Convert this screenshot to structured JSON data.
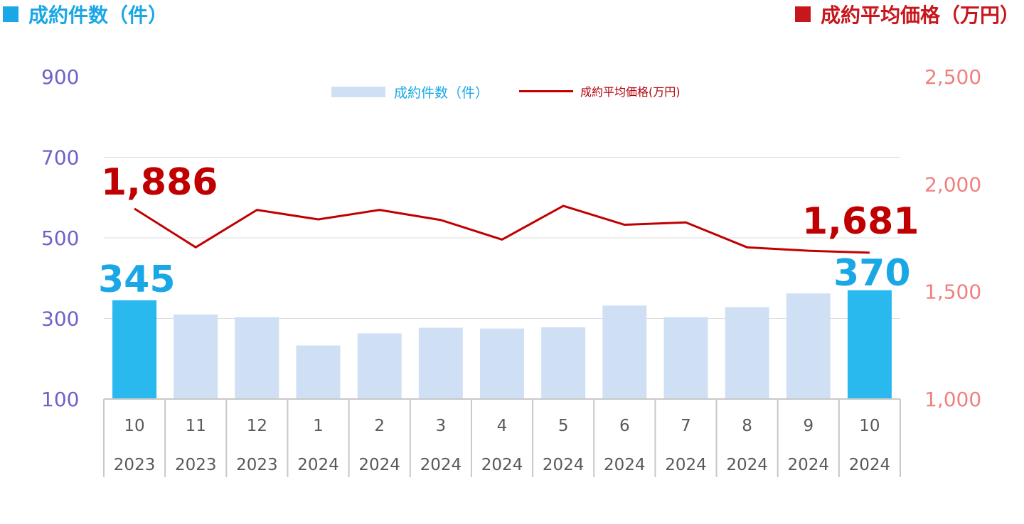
{
  "header": {
    "left_title": "成約件数（件）",
    "right_title": "成約平均価格（万円）"
  },
  "legend": {
    "bar_label": "成約件数（件）",
    "line_label": "成約平均価格(万円)"
  },
  "colors": {
    "bar_highlight": "#29b9ee",
    "bar_normal": "#cfe0f4",
    "line": "#c00000",
    "left_axis": "#6c63c7",
    "right_axis": "#f08080",
    "count_label": "#1aa7e6",
    "price_label": "#c00000"
  },
  "chart_data": {
    "type": "bar+line",
    "categories": [
      {
        "month": "10",
        "year": "2023"
      },
      {
        "month": "11",
        "year": "2023"
      },
      {
        "month": "12",
        "year": "2023"
      },
      {
        "month": "1",
        "year": "2024"
      },
      {
        "month": "2",
        "year": "2024"
      },
      {
        "month": "3",
        "year": "2024"
      },
      {
        "month": "4",
        "year": "2024"
      },
      {
        "month": "5",
        "year": "2024"
      },
      {
        "month": "6",
        "year": "2024"
      },
      {
        "month": "7",
        "year": "2024"
      },
      {
        "month": "8",
        "year": "2024"
      },
      {
        "month": "9",
        "year": "2024"
      },
      {
        "month": "10",
        "year": "2024"
      }
    ],
    "series": [
      {
        "name": "成約件数（件）",
        "type": "bar",
        "axis": "left",
        "values": [
          345,
          310,
          303,
          233,
          263,
          277,
          275,
          278,
          332,
          303,
          328,
          362,
          370
        ],
        "highlight": [
          true,
          false,
          false,
          false,
          false,
          false,
          false,
          false,
          false,
          false,
          false,
          false,
          true
        ]
      },
      {
        "name": "成約平均価格(万円)",
        "type": "line",
        "axis": "right",
        "values": [
          1886,
          1706,
          1880,
          1836,
          1880,
          1833,
          1742,
          1899,
          1811,
          1822,
          1706,
          1690,
          1681
        ]
      }
    ],
    "left_axis": {
      "ylim": [
        100,
        900
      ],
      "ticks": [
        "100",
        "300",
        "500",
        "700",
        "900"
      ],
      "tick_values": [
        100,
        300,
        500,
        700,
        900
      ]
    },
    "right_axis": {
      "ylim": [
        1000,
        2500
      ],
      "ticks": [
        "1,000",
        "1,500",
        "2,000",
        "2,500"
      ],
      "tick_values": [
        1000,
        1500,
        2000,
        2500
      ]
    },
    "annotations": {
      "first_count": "345",
      "last_count": "370",
      "first_price": "1,886",
      "last_price": "1,681"
    },
    "grid": true,
    "legend_position": "top-center"
  }
}
